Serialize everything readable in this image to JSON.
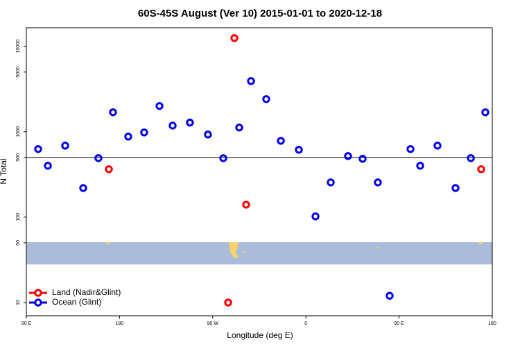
{
  "chart_data": {
    "type": "scatter",
    "title": "60S-45S August (Ver 10)   2015-01-01 to 2020-12-18",
    "x_label": "Longitude (deg E)",
    "y_label": "N Total",
    "log_y": true,
    "hline": 500,
    "legend": "bottom-left",
    "xlim": [
      90,
      540
    ],
    "xticks": [
      {
        "value": 90,
        "label": "90 E"
      },
      {
        "value": 180,
        "label": "180"
      },
      {
        "value": 270,
        "label": "90 W"
      },
      {
        "value": 360,
        "label": "0"
      },
      {
        "value": 450,
        "label": "90 E"
      },
      {
        "value": 540,
        "label": "180"
      }
    ],
    "ylim": [
      7,
      16500
    ],
    "yticks": [
      10,
      50,
      100,
      500,
      1000,
      5000,
      10000
    ],
    "series": [
      {
        "name": "Land (Nadir&Glint)",
        "color": "#ff0000",
        "x": [
          169.7,
          290.9,
          302.3,
          284.9,
          529.3
        ],
        "values": [
          364,
          12500,
          140,
          10,
          364
        ]
      },
      {
        "name": "Ocean (Glint)",
        "color": "#0000ee",
        "x": [
          101.4,
          110.8,
          127.5,
          144.9,
          159.6,
          173.7,
          188.4,
          203.8,
          218.6,
          231.3,
          248.0,
          265.4,
          280.2,
          295.6,
          307.0,
          321.7,
          335.8,
          353.2,
          369.3,
          384.0,
          400.7,
          414.8,
          429.5,
          440.9,
          461.0,
          470.4,
          487.1,
          504.5,
          519.3,
          533.3
        ],
        "values": [
          627,
          400,
          687,
          219,
          491,
          1690,
          877,
          982,
          2000,
          1180,
          1280,
          927,
          490,
          1120,
          3920,
          2410,
          783,
          615,
          102,
          255,
          519,
          482,
          255,
          12,
          627,
          400,
          687,
          219,
          491,
          1690
        ]
      }
    ]
  }
}
